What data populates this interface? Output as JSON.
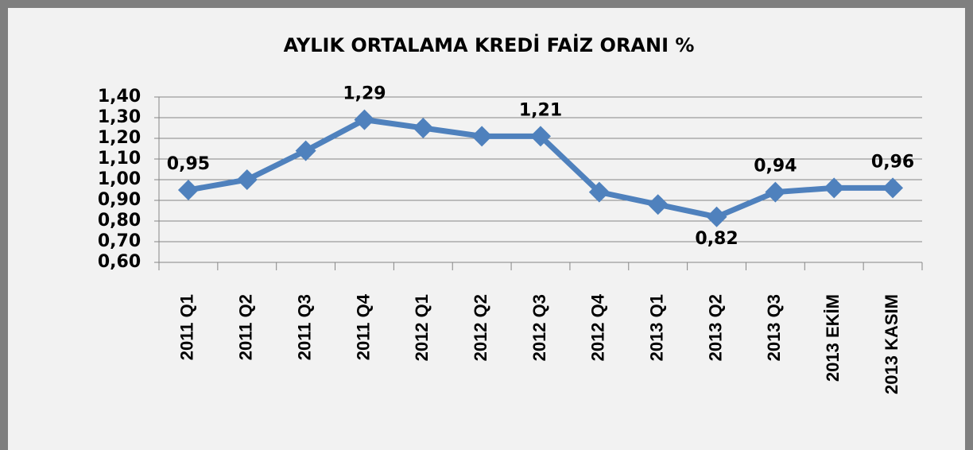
{
  "chart_data": {
    "type": "line",
    "title": "AYLIK ORTALAMA KREDİ FAİZ ORANI %",
    "categories": [
      "2011 Q1",
      "2011 Q2",
      "2011 Q3",
      "2011 Q4",
      "2012 Q1",
      "2012 Q2",
      "2012 Q3",
      "2012 Q4",
      "2013 Q1",
      "2013 Q2",
      "2013 Q3",
      "2013 EKİM",
      "2013 KASIM"
    ],
    "series": [
      {
        "name": "AYLIK ORTALAMA KREDİ FAİZ ORANI %",
        "color": "#4f81bd",
        "values": [
          0.95,
          1.0,
          1.14,
          1.29,
          1.25,
          1.21,
          1.21,
          0.94,
          0.88,
          0.82,
          0.94,
          0.96,
          0.96
        ],
        "value_labels": [
          "0,95",
          null,
          null,
          "1,29",
          null,
          null,
          "1,21",
          null,
          null,
          "0,82",
          "0,94",
          null,
          "0,96"
        ]
      }
    ],
    "ylim": [
      0.6,
      1.4
    ],
    "yticks": [
      {
        "value": 0.6,
        "label": "0,60"
      },
      {
        "value": 0.7,
        "label": "0,70"
      },
      {
        "value": 0.8,
        "label": "0,80"
      },
      {
        "value": 0.9,
        "label": "0,90"
      },
      {
        "value": 1.0,
        "label": "1,00"
      },
      {
        "value": 1.1,
        "label": "1,10"
      },
      {
        "value": 1.2,
        "label": "1,20"
      },
      {
        "value": 1.3,
        "label": "1,30"
      },
      {
        "value": 1.4,
        "label": "1,40"
      }
    ],
    "grid": true
  }
}
